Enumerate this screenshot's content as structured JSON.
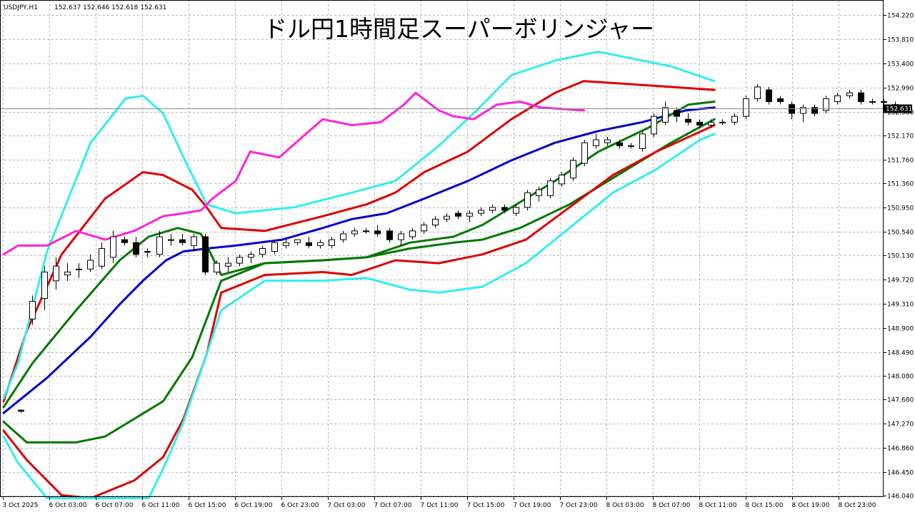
{
  "header": {
    "symbol": "USDJPY,H1",
    "ohlc": "152.637 152.646 152.618 152.631"
  },
  "chart_data": {
    "type": "candlestick",
    "title": "ドル円1時間足スーパーボリンジャー",
    "ylim": [
      146.02,
      154.48
    ],
    "grid": true,
    "current_price": 152.631,
    "current_price_label": "152.631",
    "y_ticks": [
      "154.220",
      "153.810",
      "153.400",
      "152.990",
      "152.580",
      "152.170",
      "151.760",
      "151.360",
      "150.950",
      "150.540",
      "150.130",
      "149.720",
      "149.310",
      "148.900",
      "148.490",
      "148.080",
      "147.680",
      "147.270",
      "146.860",
      "146.450",
      "146.040"
    ],
    "x_ticks": [
      "3 Oct 2025",
      "6 Oct 03:00",
      "6 Oct 07:00",
      "6 Oct 11:00",
      "6 Oct 15:00",
      "6 Oct 19:00",
      "6 Oct 23:00",
      "7 Oct 03:00",
      "7 Oct 07:00",
      "7 Oct 11:00",
      "7 Oct 15:00",
      "7 Oct 19:00",
      "7 Oct 23:00",
      "8 Oct 03:00",
      "8 Oct 07:00",
      "8 Oct 11:00",
      "8 Oct 15:00",
      "8 Oct 19:00",
      "8 Oct 23:00"
    ],
    "candles": [
      [
        147.5,
        147.5,
        147.45,
        147.48
      ],
      [
        149.05,
        149.45,
        148.95,
        149.35
      ],
      [
        149.4,
        149.95,
        149.2,
        149.85
      ],
      [
        149.7,
        150.1,
        149.55,
        149.95
      ],
      [
        149.8,
        150.0,
        149.7,
        149.85
      ],
      [
        149.9,
        150.0,
        149.75,
        149.9
      ],
      [
        149.9,
        150.15,
        149.85,
        150.05
      ],
      [
        149.95,
        150.35,
        149.9,
        150.25
      ],
      [
        150.1,
        150.55,
        150.0,
        150.45
      ],
      [
        150.4,
        150.45,
        150.3,
        150.35
      ],
      [
        150.35,
        150.45,
        150.1,
        150.15
      ],
      [
        150.2,
        150.25,
        150.1,
        150.2
      ],
      [
        150.15,
        150.55,
        150.1,
        150.45
      ],
      [
        150.4,
        150.5,
        150.3,
        150.4
      ],
      [
        150.4,
        150.5,
        150.3,
        150.35
      ],
      [
        150.3,
        150.5,
        150.2,
        150.45
      ],
      [
        150.45,
        150.5,
        149.8,
        149.85
      ],
      [
        149.85,
        150.05,
        149.8,
        150.0
      ],
      [
        149.95,
        150.1,
        149.85,
        150.0
      ],
      [
        150.0,
        150.15,
        149.95,
        150.1
      ],
      [
        150.1,
        150.2,
        150.0,
        150.15
      ],
      [
        150.15,
        150.3,
        150.1,
        150.25
      ],
      [
        150.2,
        150.4,
        150.15,
        150.35
      ],
      [
        150.3,
        150.4,
        150.25,
        150.35
      ],
      [
        150.35,
        150.4,
        150.3,
        150.4
      ],
      [
        150.35,
        150.45,
        150.25,
        150.3
      ],
      [
        150.3,
        150.4,
        150.25,
        150.35
      ],
      [
        150.3,
        150.45,
        150.25,
        150.4
      ],
      [
        150.4,
        150.55,
        150.35,
        150.5
      ],
      [
        150.5,
        150.6,
        150.45,
        150.55
      ],
      [
        150.55,
        150.6,
        150.5,
        150.55
      ],
      [
        150.55,
        150.65,
        150.45,
        150.5
      ],
      [
        150.55,
        150.6,
        150.35,
        150.4
      ],
      [
        150.4,
        150.55,
        150.3,
        150.5
      ],
      [
        150.45,
        150.6,
        150.4,
        150.55
      ],
      [
        150.55,
        150.7,
        150.5,
        150.65
      ],
      [
        150.65,
        150.8,
        150.6,
        150.75
      ],
      [
        150.75,
        150.85,
        150.7,
        150.8
      ],
      [
        150.85,
        150.9,
        150.75,
        150.8
      ],
      [
        150.8,
        150.9,
        150.7,
        150.85
      ],
      [
        150.85,
        150.95,
        150.8,
        150.9
      ],
      [
        150.9,
        151.0,
        150.85,
        150.95
      ],
      [
        150.95,
        151.0,
        150.85,
        150.9
      ],
      [
        150.85,
        151.0,
        150.8,
        150.95
      ],
      [
        150.95,
        151.25,
        150.9,
        151.2
      ],
      [
        151.15,
        151.3,
        151.05,
        151.25
      ],
      [
        151.15,
        151.45,
        151.1,
        151.4
      ],
      [
        151.35,
        151.55,
        151.3,
        151.5
      ],
      [
        151.45,
        151.8,
        151.4,
        151.75
      ],
      [
        151.7,
        152.1,
        151.65,
        152.05
      ],
      [
        152.0,
        152.2,
        151.95,
        152.1
      ],
      [
        152.05,
        152.15,
        152.0,
        152.1
      ],
      [
        152.05,
        152.1,
        151.95,
        152.0
      ],
      [
        152.0,
        152.05,
        151.95,
        152.0
      ],
      [
        151.95,
        152.25,
        151.9,
        152.2
      ],
      [
        152.2,
        152.55,
        152.15,
        152.5
      ],
      [
        152.4,
        152.75,
        152.35,
        152.65
      ],
      [
        152.6,
        152.65,
        152.4,
        152.5
      ],
      [
        152.45,
        152.55,
        152.35,
        152.4
      ],
      [
        152.4,
        152.45,
        152.3,
        152.35
      ],
      [
        152.35,
        152.45,
        152.3,
        152.4
      ],
      [
        152.4,
        152.45,
        152.35,
        152.4
      ],
      [
        152.4,
        152.55,
        152.35,
        152.5
      ],
      [
        152.5,
        152.85,
        152.45,
        152.8
      ],
      [
        152.8,
        153.05,
        152.75,
        153.0
      ],
      [
        152.95,
        153.0,
        152.7,
        152.75
      ],
      [
        152.8,
        152.85,
        152.7,
        152.75
      ],
      [
        152.7,
        152.75,
        152.45,
        152.55
      ],
      [
        152.55,
        152.7,
        152.4,
        152.65
      ],
      [
        152.65,
        152.7,
        152.5,
        152.55
      ],
      [
        152.6,
        152.85,
        152.55,
        152.8
      ],
      [
        152.75,
        152.9,
        152.7,
        152.85
      ],
      [
        152.85,
        152.95,
        152.8,
        152.9
      ],
      [
        152.9,
        152.95,
        152.7,
        152.75
      ],
      [
        152.75,
        152.8,
        152.7,
        152.75
      ],
      [
        152.75,
        152.8,
        152.65,
        152.75
      ],
      [
        152.7,
        152.75,
        152.6,
        152.63
      ]
    ],
    "series": [
      {
        "name": "",
        "color": "#0000cc",
        "points": [
          [
            0,
            147.45
          ],
          [
            15,
            148.05
          ],
          [
            30,
            148.75
          ],
          [
            40,
            149.3
          ],
          [
            48,
            149.7
          ],
          [
            56,
            150.05
          ],
          [
            62,
            150.2
          ],
          [
            70,
            150.25
          ],
          [
            80,
            150.3
          ],
          [
            96,
            150.4
          ],
          [
            110,
            150.6
          ],
          [
            120,
            150.75
          ],
          [
            132,
            150.85
          ],
          [
            145,
            151.1
          ],
          [
            160,
            151.4
          ],
          [
            175,
            151.75
          ],
          [
            190,
            152.05
          ],
          [
            205,
            152.25
          ],
          [
            220,
            152.4
          ],
          [
            235,
            152.6
          ],
          [
            245,
            152.65
          ]
        ]
      },
      {
        "name": "",
        "color": "#007700",
        "points": [
          [
            0,
            147.55
          ],
          [
            10,
            148.3
          ],
          [
            25,
            149.2
          ],
          [
            40,
            150.05
          ],
          [
            50,
            150.45
          ],
          [
            60,
            150.6
          ],
          [
            68,
            150.5
          ],
          [
            75,
            149.8
          ],
          [
            90,
            150.0
          ],
          [
            110,
            150.05
          ],
          [
            125,
            150.1
          ],
          [
            140,
            150.35
          ],
          [
            155,
            150.45
          ],
          [
            165,
            150.65
          ],
          [
            180,
            151.1
          ],
          [
            190,
            151.4
          ],
          [
            205,
            151.9
          ],
          [
            222,
            152.3
          ],
          [
            236,
            152.7
          ],
          [
            245,
            152.75
          ]
        ]
      },
      {
        "name": "",
        "color": "#007700",
        "points": [
          [
            0,
            147.3
          ],
          [
            8,
            146.95
          ],
          [
            25,
            146.95
          ],
          [
            35,
            147.05
          ],
          [
            55,
            147.65
          ],
          [
            65,
            148.4
          ],
          [
            75,
            149.7
          ],
          [
            90,
            150.0
          ],
          [
            110,
            150.05
          ],
          [
            125,
            150.1
          ],
          [
            140,
            150.25
          ],
          [
            155,
            150.35
          ],
          [
            165,
            150.4
          ],
          [
            178,
            150.6
          ],
          [
            195,
            151.0
          ],
          [
            215,
            151.6
          ],
          [
            230,
            152.05
          ],
          [
            245,
            152.45
          ]
        ]
      },
      {
        "name": "",
        "color": "#dd0000",
        "points": [
          [
            0,
            147.65
          ],
          [
            8,
            148.85
          ],
          [
            20,
            150.15
          ],
          [
            35,
            151.1
          ],
          [
            48,
            151.55
          ],
          [
            55,
            151.5
          ],
          [
            65,
            151.25
          ],
          [
            70,
            150.95
          ],
          [
            75,
            150.6
          ],
          [
            90,
            150.55
          ],
          [
            110,
            150.8
          ],
          [
            125,
            151.0
          ],
          [
            135,
            151.2
          ],
          [
            145,
            151.55
          ],
          [
            160,
            151.9
          ],
          [
            175,
            152.45
          ],
          [
            190,
            152.9
          ],
          [
            200,
            153.1
          ],
          [
            215,
            153.05
          ],
          [
            230,
            153.0
          ],
          [
            245,
            152.95
          ]
        ]
      },
      {
        "name": "",
        "color": "#dd0000",
        "points": [
          [
            0,
            147.15
          ],
          [
            8,
            146.65
          ],
          [
            20,
            146.05
          ],
          [
            30,
            146.0
          ],
          [
            45,
            146.3
          ],
          [
            55,
            146.7
          ],
          [
            62,
            147.35
          ],
          [
            70,
            148.45
          ],
          [
            75,
            149.5
          ],
          [
            90,
            149.8
          ],
          [
            110,
            149.85
          ],
          [
            120,
            149.8
          ],
          [
            135,
            150.05
          ],
          [
            150,
            150.0
          ],
          [
            165,
            150.15
          ],
          [
            180,
            150.4
          ],
          [
            195,
            150.95
          ],
          [
            210,
            151.5
          ],
          [
            225,
            151.9
          ],
          [
            245,
            152.35
          ]
        ]
      },
      {
        "name": "",
        "color": "#33eeee",
        "points": [
          [
            0,
            147.7
          ],
          [
            5,
            148.3
          ],
          [
            15,
            150.2
          ],
          [
            30,
            152.05
          ],
          [
            42,
            152.8
          ],
          [
            48,
            152.85
          ],
          [
            55,
            152.55
          ],
          [
            62,
            151.8
          ],
          [
            70,
            151.0
          ],
          [
            80,
            150.85
          ],
          [
            100,
            150.95
          ],
          [
            120,
            151.2
          ],
          [
            135,
            151.4
          ],
          [
            150,
            152.0
          ],
          [
            162,
            152.55
          ],
          [
            175,
            153.2
          ],
          [
            190,
            153.45
          ],
          [
            205,
            153.6
          ],
          [
            220,
            153.45
          ],
          [
            230,
            153.35
          ],
          [
            245,
            153.1
          ]
        ]
      },
      {
        "name": "",
        "color": "#33eeee",
        "points": [
          [
            0,
            147.05
          ],
          [
            5,
            146.6
          ],
          [
            15,
            146.0
          ],
          [
            50,
            146.0
          ],
          [
            55,
            146.5
          ],
          [
            62,
            147.3
          ],
          [
            70,
            148.45
          ],
          [
            75,
            149.2
          ],
          [
            90,
            149.7
          ],
          [
            110,
            149.7
          ],
          [
            125,
            149.75
          ],
          [
            140,
            149.55
          ],
          [
            150,
            149.5
          ],
          [
            165,
            149.6
          ],
          [
            180,
            150.0
          ],
          [
            195,
            150.6
          ],
          [
            210,
            151.2
          ],
          [
            225,
            151.6
          ],
          [
            240,
            152.1
          ],
          [
            245,
            152.2
          ]
        ]
      },
      {
        "name": "",
        "color": "#ff22dd",
        "points": [
          [
            0,
            150.15
          ],
          [
            5,
            150.3
          ],
          [
            15,
            150.3
          ],
          [
            25,
            150.55
          ],
          [
            35,
            150.4
          ],
          [
            45,
            150.55
          ],
          [
            55,
            150.8
          ],
          [
            62,
            150.85
          ],
          [
            68,
            150.9
          ],
          [
            72,
            151.1
          ],
          [
            80,
            151.4
          ],
          [
            85,
            151.9
          ],
          [
            95,
            151.8
          ],
          [
            103,
            152.15
          ],
          [
            110,
            152.45
          ],
          [
            120,
            152.35
          ],
          [
            130,
            152.4
          ],
          [
            138,
            152.7
          ],
          [
            142,
            152.9
          ],
          [
            150,
            152.6
          ],
          [
            155,
            152.5
          ],
          [
            162,
            152.45
          ],
          [
            170,
            152.7
          ],
          [
            178,
            152.75
          ],
          [
            185,
            152.65
          ],
          [
            200,
            152.6
          ]
        ]
      }
    ]
  }
}
